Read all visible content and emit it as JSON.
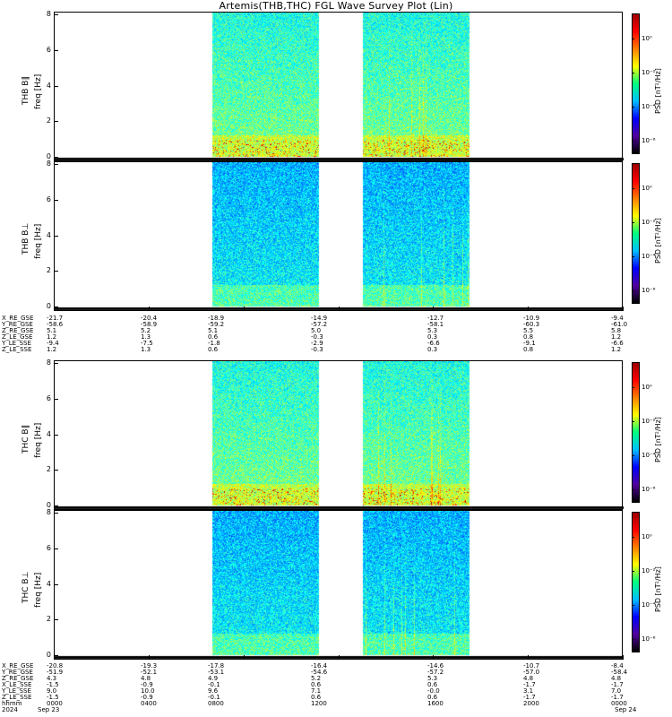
{
  "chart_data": {
    "type": "heatmap",
    "title": "Artemis(THB,THC) FGL Wave Survey Plot (Lin)",
    "x": {
      "unit": "hhmm",
      "start": "0000",
      "end": "2400",
      "tick_labels": [
        "0000",
        "0400",
        "0800",
        "1200",
        "1600",
        "2000",
        "0000"
      ],
      "date_labels": [
        "2024",
        "Sep 23",
        "Sep 24"
      ]
    },
    "data_intervals_hhmm": [
      [
        "0640",
        "1110"
      ],
      [
        "1300",
        "1730"
      ]
    ],
    "colorbar": {
      "label": "PSD [nT²/Hz]",
      "scale": "log",
      "range": [
        1e-08,
        100
      ],
      "tick_labels": [
        "10⁰",
        "10⁻²",
        "10⁻⁴",
        "10⁻⁶"
      ]
    },
    "panels": [
      {
        "probe": "THB B∥",
        "ylabel": "freq [Hz]",
        "ylim": [
          0,
          8
        ],
        "yticks": [
          "0",
          "2",
          "4",
          "6",
          "8"
        ],
        "colorbar": true
      },
      {
        "probe": "THB B⊥",
        "ylabel": "freq [Hz]",
        "ylim": [
          0,
          8
        ],
        "yticks": [
          "0",
          "2",
          "4",
          "6",
          "8"
        ],
        "colorbar": true
      },
      {
        "probe": "THC B∥",
        "ylabel": "freq [Hz]",
        "ylim": [
          0,
          8
        ],
        "yticks": [
          "0",
          "2",
          "4",
          "6",
          "8"
        ],
        "colorbar": true
      },
      {
        "probe": "THC B⊥",
        "ylabel": "freq [Hz]",
        "ylim": [
          0,
          8
        ],
        "yticks": [
          "0",
          "2",
          "4",
          "6",
          "8"
        ],
        "colorbar": true
      }
    ],
    "orbit_tables": [
      {
        "rows": [
          {
            "label": "X_RE_GSE",
            "values": [
              "-21.7",
              "-20.4",
              "-18.9",
              "-14.9",
              "-12.7",
              "-10.9",
              "-9.4"
            ]
          },
          {
            "label": "Y_RE_GSE",
            "values": [
              "-58.6",
              "-58.9",
              "-59.2",
              "-57.2",
              "-58.1",
              "-60.3",
              "-61.0"
            ]
          },
          {
            "label": "Z_RE_GSE",
            "values": [
              "5.1",
              "5.2",
              "5.1",
              "5.0",
              "5.3",
              "5.5",
              "5.8"
            ]
          },
          {
            "label": "Z_LE_GSE",
            "values": [
              "1.2",
              "1.3",
              "0.6",
              "-0.3",
              "0.3",
              "0.8",
              "1.2"
            ]
          },
          {
            "label": "Y_LE_SSE",
            "values": [
              "-9.4",
              "-7.5",
              "-1.8",
              "-2.9",
              "-6.6",
              "-9.1",
              "-6.6"
            ]
          },
          {
            "label": "Z_LE_SSE",
            "values": [
              "1.2",
              "1.3",
              "0.6",
              "-0.3",
              "0.3",
              "0.8",
              "1.2"
            ]
          }
        ]
      },
      {
        "rows": [
          {
            "label": "X_RE_GSE",
            "values": [
              "-20.8",
              "-19.3",
              "-17.8",
              "-16.4",
              "-14.6",
              "-10.7",
              "-8.4"
            ]
          },
          {
            "label": "Y_RE_GSE",
            "values": [
              "-51.9",
              "-52.1",
              "-53.1",
              "-54.6",
              "-57.2",
              "-57.0",
              "-58.4"
            ]
          },
          {
            "label": "Z_RE_GSE",
            "values": [
              "4.3",
              "4.8",
              "4.9",
              "5.2",
              "5.3",
              "4.8",
              "4.8"
            ]
          },
          {
            "label": "X_LE_SSE",
            "values": [
              "-1.5",
              "-0.9",
              "-0.1",
              "0.6",
              "0.6",
              "-1.7",
              "-1.7"
            ]
          },
          {
            "label": "Y_LE_SSE",
            "values": [
              "9.0",
              "10.0",
              "9.6",
              "7.1",
              "-0.0",
              "3.1",
              "7.0"
            ]
          },
          {
            "label": "Z_LE_SSE",
            "values": [
              "-1.5",
              "-0.9",
              "-0.1",
              "0.6",
              "0.6",
              "-1.7",
              "-1.7"
            ]
          }
        ]
      }
    ]
  }
}
